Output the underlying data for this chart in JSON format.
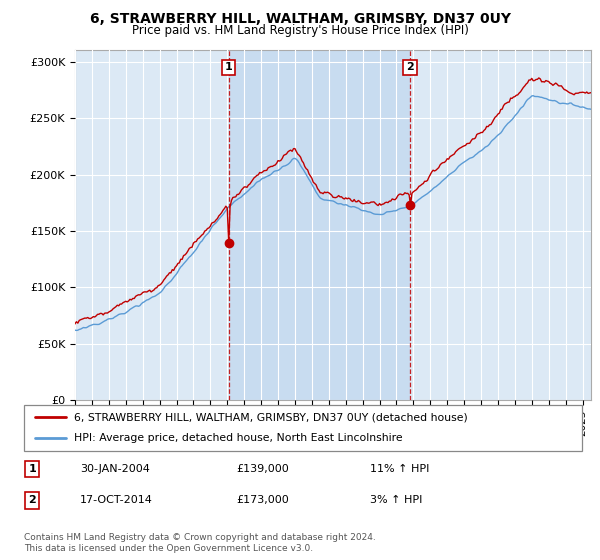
{
  "title": "6, STRAWBERRY HILL, WALTHAM, GRIMSBY, DN37 0UY",
  "subtitle": "Price paid vs. HM Land Registry's House Price Index (HPI)",
  "ylabel_ticks": [
    "£0",
    "£50K",
    "£100K",
    "£150K",
    "£200K",
    "£250K",
    "£300K"
  ],
  "ytick_values": [
    0,
    50000,
    100000,
    150000,
    200000,
    250000,
    300000
  ],
  "ylim": [
    0,
    310000
  ],
  "hpi_color": "#5b9bd5",
  "price_color": "#c00000",
  "bg_color": "#dce9f5",
  "bg_highlight": "#c5dbf0",
  "sale1_date_label": "30-JAN-2004",
  "sale1_price_label": "£139,000",
  "sale1_hpi_label": "11% ↑ HPI",
  "sale1_year": 2004.08,
  "sale1_price": 139000,
  "sale2_date_label": "17-OCT-2014",
  "sale2_price_label": "£173,000",
  "sale2_hpi_label": "3% ↑ HPI",
  "sale2_year": 2014.8,
  "sale2_price": 173000,
  "legend_line1": "6, STRAWBERRY HILL, WALTHAM, GRIMSBY, DN37 0UY (detached house)",
  "legend_line2": "HPI: Average price, detached house, North East Lincolnshire",
  "footer": "Contains HM Land Registry data © Crown copyright and database right 2024.\nThis data is licensed under the Open Government Licence v3.0.",
  "xmin": 1995.0,
  "xmax": 2025.5
}
